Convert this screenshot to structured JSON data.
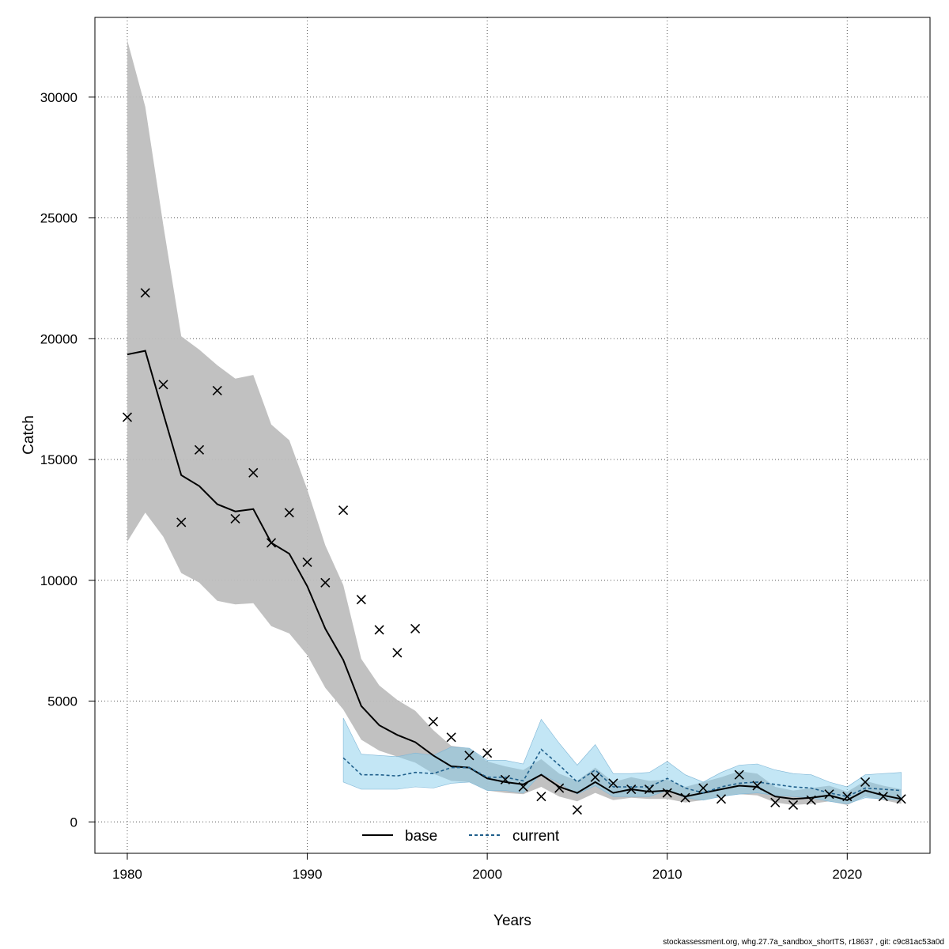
{
  "chart_data": {
    "type": "line",
    "title": "",
    "xlabel": "Years",
    "ylabel": "Catch",
    "xlim": [
      1978.2,
      2024.6
    ],
    "ylim": [
      -1300,
      33300
    ],
    "x_ticks": [
      1980,
      1990,
      2000,
      2010,
      2020
    ],
    "y_ticks": [
      0,
      5000,
      10000,
      15000,
      20000,
      25000,
      30000
    ],
    "grid": true,
    "legend_position": "bottom-center",
    "colors": {
      "base_band": "#bebebe",
      "base_line": "#000000",
      "current_band": "#87ceeb",
      "current_line": "#1f5f8b",
      "observed": "#000000"
    },
    "series": [
      {
        "name": "base",
        "style": "solid",
        "x": [
          1980,
          1981,
          1982,
          1983,
          1984,
          1985,
          1986,
          1987,
          1988,
          1989,
          1990,
          1991,
          1992,
          1993,
          1994,
          1995,
          1996,
          1997,
          1998,
          1999,
          2000,
          2001,
          2002,
          2003,
          2004,
          2005,
          2006,
          2007,
          2008,
          2009,
          2010,
          2011,
          2012,
          2013,
          2014,
          2015,
          2016,
          2017,
          2018,
          2019,
          2020,
          2021,
          2022,
          2023
        ],
        "values": [
          19350,
          19500,
          16900,
          14350,
          13900,
          13150,
          12850,
          12950,
          11550,
          11100,
          9750,
          8000,
          6700,
          4800,
          4000,
          3600,
          3300,
          2750,
          2300,
          2250,
          1800,
          1650,
          1550,
          1950,
          1450,
          1200,
          1650,
          1200,
          1350,
          1250,
          1300,
          1050,
          1200,
          1350,
          1500,
          1450,
          1050,
          950,
          1000,
          1100,
          900,
          1300,
          1100,
          950
        ],
        "lower": [
          11600,
          12800,
          11800,
          10300,
          9900,
          9150,
          9000,
          9050,
          8100,
          7800,
          6900,
          5550,
          4650,
          3400,
          2950,
          2700,
          2450,
          2000,
          1700,
          1650,
          1300,
          1200,
          1150,
          1450,
          1050,
          850,
          1200,
          900,
          1000,
          950,
          950,
          800,
          900,
          1050,
          1150,
          1100,
          800,
          700,
          750,
          850,
          700,
          1050,
          900,
          750
        ],
        "upper": [
          32350,
          29600,
          24700,
          20100,
          19550,
          18900,
          18350,
          18500,
          16450,
          15800,
          13750,
          11450,
          9800,
          6750,
          5650,
          5050,
          4600,
          3800,
          3150,
          3050,
          2500,
          2300,
          2150,
          2600,
          2000,
          1700,
          2250,
          1650,
          1850,
          1700,
          1750,
          1450,
          1650,
          1850,
          2100,
          2000,
          1450,
          1300,
          1400,
          1500,
          1250,
          1700,
          1500,
          1350
        ]
      },
      {
        "name": "current",
        "style": "dashed",
        "x": [
          1992,
          1993,
          1994,
          1995,
          1996,
          1997,
          1998,
          1999,
          2000,
          2001,
          2002,
          2003,
          2004,
          2005,
          2006,
          2007,
          2008,
          2009,
          2010,
          2011,
          2012,
          2013,
          2014,
          2015,
          2016,
          2017,
          2018,
          2019,
          2020,
          2021,
          2022,
          2023
        ],
        "values": [
          2650,
          1950,
          1950,
          1900,
          2050,
          2000,
          2250,
          2250,
          1850,
          1850,
          1700,
          3000,
          2350,
          1650,
          2150,
          1450,
          1450,
          1450,
          1800,
          1400,
          1200,
          1450,
          1600,
          1650,
          1550,
          1450,
          1400,
          1200,
          1050,
          1400,
          1350,
          1300
        ],
        "lower": [
          1650,
          1350,
          1350,
          1350,
          1450,
          1400,
          1600,
          1650,
          1300,
          1300,
          1200,
          2000,
          1600,
          1150,
          1500,
          1050,
          1050,
          1050,
          1300,
          1000,
          900,
          1050,
          1150,
          1200,
          1100,
          1050,
          1000,
          850,
          750,
          1000,
          950,
          900
        ],
        "upper": [
          4300,
          2800,
          2750,
          2700,
          2850,
          2750,
          3100,
          3050,
          2550,
          2550,
          2400,
          4250,
          3250,
          2350,
          3200,
          2000,
          2000,
          2050,
          2500,
          1950,
          1650,
          2050,
          2350,
          2400,
          2150,
          2000,
          1950,
          1650,
          1450,
          1950,
          2000,
          2050
        ]
      }
    ],
    "observed": {
      "name": "observed catch",
      "marker": "x",
      "x": [
        1980,
        1981,
        1982,
        1983,
        1984,
        1985,
        1986,
        1987,
        1988,
        1989,
        1990,
        1991,
        1992,
        1993,
        1994,
        1995,
        1996,
        1997,
        1998,
        1999,
        2000,
        2001,
        2002,
        2003,
        2004,
        2005,
        2006,
        2007,
        2008,
        2009,
        2010,
        2011,
        2012,
        2013,
        2014,
        2015,
        2016,
        2017,
        2018,
        2019,
        2020,
        2021,
        2022,
        2023
      ],
      "values": [
        16750,
        21900,
        18100,
        12400,
        15400,
        17850,
        12550,
        14450,
        11550,
        12800,
        10750,
        9900,
        12900,
        9200,
        7950,
        7000,
        8000,
        4150,
        3500,
        2750,
        2850,
        1750,
        1450,
        1050,
        1400,
        500,
        1850,
        1600,
        1350,
        1350,
        1200,
        1000,
        1400,
        950,
        1950,
        1500,
        800,
        700,
        900,
        1150,
        1050,
        1650,
        1050,
        950
      ]
    }
  },
  "footer": {
    "text": "stockassessment.org, whg.27.7a_sandbox_shortTS, r18637 , git: c9c81ac53a0d"
  }
}
